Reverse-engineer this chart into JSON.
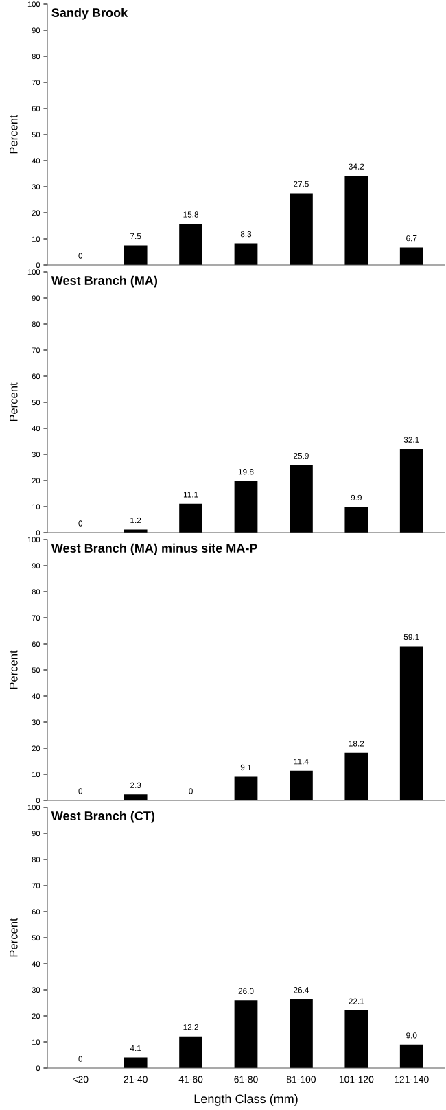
{
  "chart_data": [
    {
      "type": "bar",
      "title": "Sandy Brook",
      "ylabel": "Percent",
      "categories": [
        null,
        null,
        null,
        null,
        null,
        null,
        null
      ],
      "values": [
        0,
        7.5,
        15.8,
        8.3,
        27.5,
        34.2,
        6.7
      ],
      "value_labels": [
        "0",
        "7.5",
        "15.8",
        "8.3",
        "27.5",
        "34.2",
        "6.7"
      ],
      "color": "#000000",
      "ylim": [
        0,
        100
      ],
      "yticks": [
        0,
        10,
        20,
        30,
        40,
        50,
        60,
        70,
        80,
        90,
        100
      ],
      "tick_labels": "y",
      "grid": false,
      "legend": false
    },
    {
      "type": "bar",
      "title": "West Branch (MA)",
      "ylabel": "Percent",
      "categories": [
        null,
        null,
        null,
        null,
        null,
        null,
        null
      ],
      "values": [
        0,
        1.2,
        11.1,
        19.8,
        25.9,
        9.9,
        32.1
      ],
      "value_labels": [
        "0",
        "1.2",
        "11.1",
        "19.8",
        "25.9",
        "9.9",
        "32.1"
      ],
      "color": "#000000",
      "ylim": [
        0,
        100
      ],
      "yticks": [
        0,
        10,
        20,
        30,
        40,
        50,
        60,
        70,
        80,
        90,
        100
      ],
      "tick_labels": "y",
      "grid": false,
      "legend": false
    },
    {
      "type": "bar",
      "title": "West Branch (MA) minus site MA-P",
      "ylabel": "Percent",
      "categories": [
        null,
        null,
        null,
        null,
        null,
        null,
        null
      ],
      "values": [
        0,
        2.3,
        0,
        9.1,
        11.4,
        18.2,
        59.1
      ],
      "value_labels": [
        "0",
        "2.3",
        "0",
        "9.1",
        "11.4",
        "18.2",
        "59.1"
      ],
      "color": "#000000",
      "ylim": [
        0,
        100
      ],
      "yticks": [
        0,
        10,
        20,
        30,
        40,
        50,
        60,
        70,
        80,
        90,
        100
      ],
      "tick_labels": "y",
      "grid": false,
      "legend": false
    },
    {
      "type": "bar",
      "title": "West Branch (CT)",
      "ylabel": "Percent",
      "xlabel": "Length Class (mm)",
      "categories": [
        "<20",
        "21-40",
        "41-60",
        "61-80",
        "81-100",
        "101-120",
        "121-140"
      ],
      "values": [
        0,
        4.1,
        12.2,
        26.0,
        26.4,
        22.1,
        9.0
      ],
      "value_labels": [
        "0",
        "4.1",
        "12.2",
        "26.0",
        "26.4",
        "22.1",
        "9.0"
      ],
      "color": "#000000",
      "ylim": [
        0,
        100
      ],
      "yticks": [
        0,
        10,
        20,
        30,
        40,
        50,
        60,
        70,
        80,
        90,
        100
      ],
      "grid": false,
      "legend": false
    }
  ]
}
